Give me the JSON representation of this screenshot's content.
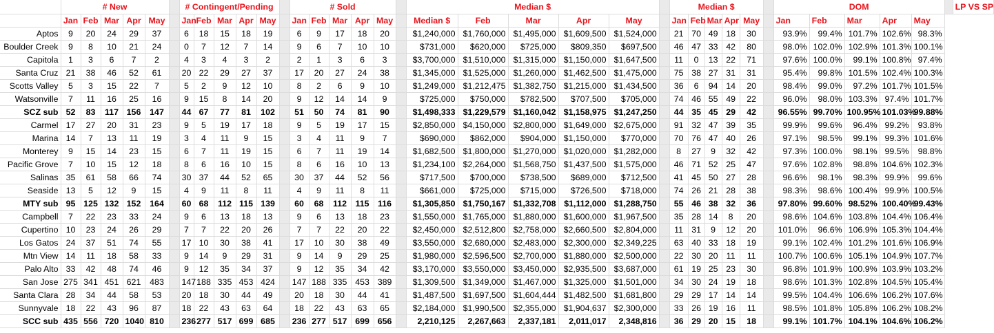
{
  "headers": {
    "groups": [
      "# New",
      "# Contingent/Pending",
      "# Sold",
      "Median $",
      "Median $",
      "DOM",
      "LP VS SP"
    ],
    "months": [
      "Jan",
      "Feb",
      "Mar",
      "Apr",
      "May"
    ],
    "median_month_labels": [
      "Median $",
      "Feb",
      "Mar",
      "Apr",
      "May"
    ]
  },
  "colors": {
    "header_red": "#e8141c",
    "gap_gray": "#eaeaea",
    "grid": "#dcdcdc"
  },
  "rows": [
    {
      "name": "Aptos",
      "sub": false,
      "new": [
        "9",
        "20",
        "24",
        "29",
        "37"
      ],
      "pending": [
        "6",
        "18",
        "15",
        "18",
        "19"
      ],
      "sold": [
        "6",
        "9",
        "17",
        "18",
        "20"
      ],
      "median": [
        "$1,240,000",
        "$1,760,000",
        "$1,495,000",
        "$1,609,500",
        "$1,524,000"
      ],
      "dom": [
        "21",
        "70",
        "49",
        "18",
        "30"
      ],
      "lpsp": [
        "93.9%",
        "99.4%",
        "101.7%",
        "102.6%",
        "98.3%"
      ]
    },
    {
      "name": "Boulder Creek",
      "sub": false,
      "new": [
        "9",
        "8",
        "10",
        "21",
        "24"
      ],
      "pending": [
        "0",
        "7",
        "12",
        "7",
        "14"
      ],
      "sold": [
        "9",
        "6",
        "7",
        "10",
        "10"
      ],
      "median": [
        "$731,000",
        "$620,000",
        "$725,000",
        "$809,350",
        "$697,500"
      ],
      "dom": [
        "46",
        "47",
        "33",
        "42",
        "80"
      ],
      "lpsp": [
        "98.0%",
        "102.0%",
        "102.9%",
        "101.3%",
        "100.1%"
      ]
    },
    {
      "name": "Capitola",
      "sub": false,
      "new": [
        "1",
        "3",
        "6",
        "7",
        "2"
      ],
      "pending": [
        "4",
        "3",
        "4",
        "3",
        "2"
      ],
      "sold": [
        "2",
        "1",
        "3",
        "6",
        "3"
      ],
      "median": [
        "$3,700,000",
        "$1,510,000",
        "$1,315,000",
        "$1,150,000",
        "$1,647,500"
      ],
      "dom": [
        "11",
        "0",
        "13",
        "22",
        "71"
      ],
      "lpsp": [
        "97.6%",
        "100.0%",
        "99.1%",
        "100.8%",
        "97.4%"
      ]
    },
    {
      "name": "Santa Cruz",
      "sub": false,
      "new": [
        "21",
        "38",
        "46",
        "52",
        "61"
      ],
      "pending": [
        "20",
        "22",
        "29",
        "27",
        "37"
      ],
      "sold": [
        "17",
        "20",
        "27",
        "24",
        "38"
      ],
      "median": [
        "$1,345,000",
        "$1,525,000",
        "$1,260,000",
        "$1,462,500",
        "$1,475,000"
      ],
      "dom": [
        "75",
        "38",
        "27",
        "31",
        "31"
      ],
      "lpsp": [
        "95.4%",
        "99.8%",
        "101.5%",
        "102.4%",
        "100.3%"
      ]
    },
    {
      "name": "Scotts Valley",
      "sub": false,
      "new": [
        "5",
        "3",
        "15",
        "22",
        "7"
      ],
      "pending": [
        "5",
        "2",
        "9",
        "12",
        "10"
      ],
      "sold": [
        "8",
        "2",
        "6",
        "9",
        "10"
      ],
      "median": [
        "$1,249,000",
        "$1,212,475",
        "$1,382,750",
        "$1,215,000",
        "$1,434,500"
      ],
      "dom": [
        "36",
        "6",
        "94",
        "14",
        "20"
      ],
      "lpsp": [
        "98.4%",
        "99.0%",
        "97.2%",
        "101.7%",
        "101.5%"
      ]
    },
    {
      "name": "Watsonville",
      "sub": false,
      "new": [
        "7",
        "11",
        "16",
        "25",
        "16"
      ],
      "pending": [
        "9",
        "15",
        "8",
        "14",
        "20"
      ],
      "sold": [
        "9",
        "12",
        "14",
        "14",
        "9"
      ],
      "median": [
        "$725,000",
        "$750,000",
        "$782,500",
        "$707,500",
        "$705,000"
      ],
      "dom": [
        "74",
        "46",
        "55",
        "49",
        "22"
      ],
      "lpsp": [
        "96.0%",
        "98.0%",
        "103.3%",
        "97.4%",
        "101.7%"
      ]
    },
    {
      "name": "SCZ sub",
      "sub": true,
      "new": [
        "52",
        "83",
        "117",
        "156",
        "147"
      ],
      "pending": [
        "44",
        "67",
        "77",
        "81",
        "102"
      ],
      "sold": [
        "51",
        "50",
        "74",
        "81",
        "90"
      ],
      "median": [
        "$1,498,333",
        "$1,229,579",
        "$1,160,042",
        "$1,158,975",
        "$1,247,250"
      ],
      "dom": [
        "44",
        "35",
        "45",
        "29",
        "42"
      ],
      "lpsp": [
        "96.55%",
        "99.70%",
        "100.95%",
        "101.03%",
        "99.88%"
      ]
    },
    {
      "name": "Carmel",
      "sub": false,
      "new": [
        "17",
        "27",
        "20",
        "31",
        "23"
      ],
      "pending": [
        "9",
        "5",
        "19",
        "17",
        "18"
      ],
      "sold": [
        "9",
        "5",
        "19",
        "17",
        "15"
      ],
      "median": [
        "$2,850,000",
        "$4,150,000",
        "$2,800,000",
        "$1,649,000",
        "$2,675,000"
      ],
      "dom": [
        "91",
        "32",
        "47",
        "39",
        "35"
      ],
      "lpsp": [
        "99.9%",
        "99.6%",
        "96.4%",
        "99.2%",
        "93.8%"
      ]
    },
    {
      "name": "Marina",
      "sub": false,
      "new": [
        "14",
        "7",
        "13",
        "11",
        "19"
      ],
      "pending": [
        "3",
        "4",
        "11",
        "9",
        "15"
      ],
      "sold": [
        "3",
        "4",
        "11",
        "9",
        "7"
      ],
      "median": [
        "$690,000",
        "$862,000",
        "$904,000",
        "$1,150,000",
        "$770,000"
      ],
      "dom": [
        "70",
        "76",
        "47",
        "40",
        "26"
      ],
      "lpsp": [
        "97.1%",
        "98.5%",
        "99.1%",
        "99.3%",
        "101.6%"
      ]
    },
    {
      "name": "Monterey",
      "sub": false,
      "new": [
        "9",
        "15",
        "14",
        "23",
        "15"
      ],
      "pending": [
        "6",
        "7",
        "11",
        "19",
        "15"
      ],
      "sold": [
        "6",
        "7",
        "11",
        "19",
        "14"
      ],
      "median": [
        "$1,682,500",
        "$1,800,000",
        "$1,270,000",
        "$1,020,000",
        "$1,282,000"
      ],
      "dom": [
        "8",
        "27",
        "9",
        "32",
        "42"
      ],
      "lpsp": [
        "97.3%",
        "100.0%",
        "98.1%",
        "99.5%",
        "98.8%"
      ]
    },
    {
      "name": "Pacific Grove",
      "sub": false,
      "new": [
        "7",
        "10",
        "15",
        "12",
        "18"
      ],
      "pending": [
        "8",
        "6",
        "16",
        "10",
        "15"
      ],
      "sold": [
        "8",
        "6",
        "16",
        "10",
        "13"
      ],
      "median": [
        "$1,234,100",
        "$2,264,000",
        "$1,568,750",
        "$1,437,500",
        "$1,575,000"
      ],
      "dom": [
        "46",
        "71",
        "52",
        "25",
        "47"
      ],
      "lpsp": [
        "97.6%",
        "102.8%",
        "98.8%",
        "104.6%",
        "102.3%"
      ]
    },
    {
      "name": "Salinas",
      "sub": false,
      "new": [
        "35",
        "61",
        "58",
        "66",
        "74"
      ],
      "pending": [
        "30",
        "37",
        "44",
        "52",
        "65"
      ],
      "sold": [
        "30",
        "37",
        "44",
        "52",
        "56"
      ],
      "median": [
        "$717,500",
        "$700,000",
        "$738,500",
        "$689,000",
        "$712,500"
      ],
      "dom": [
        "41",
        "45",
        "50",
        "27",
        "28"
      ],
      "lpsp": [
        "96.6%",
        "98.1%",
        "98.3%",
        "99.9%",
        "99.6%"
      ]
    },
    {
      "name": "Seaside",
      "sub": false,
      "new": [
        "13",
        "5",
        "12",
        "9",
        "15"
      ],
      "pending": [
        "4",
        "9",
        "11",
        "8",
        "11"
      ],
      "sold": [
        "4",
        "9",
        "11",
        "8",
        "11"
      ],
      "median": [
        "$661,000",
        "$725,000",
        "$715,000",
        "$726,500",
        "$718,000"
      ],
      "dom": [
        "74",
        "26",
        "21",
        "28",
        "38"
      ],
      "lpsp": [
        "98.3%",
        "98.6%",
        "100.4%",
        "99.9%",
        "100.5%"
      ]
    },
    {
      "name": "MTY sub",
      "sub": true,
      "new": [
        "95",
        "125",
        "132",
        "152",
        "164"
      ],
      "pending": [
        "60",
        "68",
        "112",
        "115",
        "139"
      ],
      "sold": [
        "60",
        "68",
        "112",
        "115",
        "116"
      ],
      "median": [
        "$1,305,850",
        "$1,750,167",
        "$1,332,708",
        "$1,112,000",
        "$1,288,750"
      ],
      "dom": [
        "55",
        "46",
        "38",
        "32",
        "36"
      ],
      "lpsp": [
        "97.80%",
        "99.60%",
        "98.52%",
        "100.40%",
        "99.43%"
      ]
    },
    {
      "name": "Campbell",
      "sub": false,
      "new": [
        "7",
        "22",
        "23",
        "33",
        "24"
      ],
      "pending": [
        "9",
        "6",
        "13",
        "18",
        "13"
      ],
      "sold": [
        "9",
        "6",
        "13",
        "18",
        "23"
      ],
      "median": [
        "$1,550,000",
        "$1,765,000",
        "$1,880,000",
        "$1,600,000",
        "$1,967,500"
      ],
      "dom": [
        "35",
        "28",
        "14",
        "8",
        "20"
      ],
      "lpsp": [
        "98.6%",
        "104.6%",
        "103.8%",
        "104.4%",
        "106.4%"
      ]
    },
    {
      "name": "Cupertino",
      "sub": false,
      "new": [
        "10",
        "23",
        "24",
        "26",
        "29"
      ],
      "pending": [
        "7",
        "7",
        "22",
        "20",
        "26"
      ],
      "sold": [
        "7",
        "7",
        "22",
        "20",
        "22"
      ],
      "median": [
        "$2,450,000",
        "$2,512,800",
        "$2,758,000",
        "$2,660,500",
        "$2,804,000"
      ],
      "dom": [
        "11",
        "31",
        "9",
        "12",
        "20"
      ],
      "lpsp": [
        "101.0%",
        "96.6%",
        "106.9%",
        "105.3%",
        "104.4%"
      ]
    },
    {
      "name": "Los Gatos",
      "sub": false,
      "new": [
        "24",
        "37",
        "51",
        "74",
        "55"
      ],
      "pending": [
        "17",
        "10",
        "30",
        "38",
        "41"
      ],
      "sold": [
        "17",
        "10",
        "30",
        "38",
        "49"
      ],
      "median": [
        "$3,550,000",
        "$2,680,000",
        "$2,483,000",
        "$2,300,000",
        "$2,349,225"
      ],
      "dom": [
        "63",
        "40",
        "33",
        "18",
        "19"
      ],
      "lpsp": [
        "99.1%",
        "102.4%",
        "101.2%",
        "101.6%",
        "106.9%"
      ]
    },
    {
      "name": "Mtn View",
      "sub": false,
      "new": [
        "14",
        "11",
        "18",
        "58",
        "33"
      ],
      "pending": [
        "9",
        "14",
        "9",
        "29",
        "31"
      ],
      "sold": [
        "9",
        "14",
        "9",
        "29",
        "25"
      ],
      "median": [
        "$1,980,000",
        "$2,596,500",
        "$2,700,000",
        "$1,880,000",
        "$2,500,000"
      ],
      "dom": [
        "22",
        "30",
        "20",
        "11",
        "11"
      ],
      "lpsp": [
        "100.7%",
        "100.6%",
        "105.1%",
        "104.9%",
        "107.7%"
      ]
    },
    {
      "name": "Palo Alto",
      "sub": false,
      "new": [
        "33",
        "42",
        "48",
        "74",
        "46"
      ],
      "pending": [
        "9",
        "12",
        "35",
        "34",
        "37"
      ],
      "sold": [
        "9",
        "12",
        "35",
        "34",
        "42"
      ],
      "median": [
        "$3,170,000",
        "$3,550,000",
        "$3,450,000",
        "$2,935,500",
        "$3,687,000"
      ],
      "dom": [
        "61",
        "19",
        "25",
        "23",
        "30"
      ],
      "lpsp": [
        "96.8%",
        "101.9%",
        "100.9%",
        "103.9%",
        "103.2%"
      ]
    },
    {
      "name": "San Jose",
      "sub": false,
      "new": [
        "275",
        "341",
        "451",
        "621",
        "483"
      ],
      "pending": [
        "147",
        "188",
        "335",
        "453",
        "424"
      ],
      "sold": [
        "147",
        "188",
        "335",
        "453",
        "389"
      ],
      "median": [
        "$1,309,500",
        "$1,349,000",
        "$1,467,000",
        "$1,325,000",
        "$1,501,000"
      ],
      "dom": [
        "34",
        "30",
        "24",
        "19",
        "18"
      ],
      "lpsp": [
        "98.6%",
        "101.3%",
        "102.8%",
        "104.5%",
        "105.4%"
      ]
    },
    {
      "name": "Santa Clara",
      "sub": false,
      "new": [
        "28",
        "34",
        "44",
        "58",
        "53"
      ],
      "pending": [
        "20",
        "18",
        "30",
        "44",
        "49"
      ],
      "sold": [
        "20",
        "18",
        "30",
        "44",
        "41"
      ],
      "median": [
        "$1,487,500",
        "$1,697,500",
        "$1,604,444",
        "$1,482,500",
        "$1,681,800"
      ],
      "dom": [
        "29",
        "29",
        "17",
        "14",
        "14"
      ],
      "lpsp": [
        "99.5%",
        "104.4%",
        "106.6%",
        "106.2%",
        "107.6%"
      ]
    },
    {
      "name": "Sunnyvale",
      "sub": false,
      "new": [
        "18",
        "22",
        "43",
        "96",
        "87"
      ],
      "pending": [
        "18",
        "22",
        "43",
        "63",
        "64"
      ],
      "sold": [
        "18",
        "22",
        "43",
        "63",
        "65"
      ],
      "median": [
        "$2,184,000",
        "$1,990,500",
        "$2,355,000",
        "$1,904,637",
        "$2,300,000"
      ],
      "dom": [
        "33",
        "26",
        "19",
        "16",
        "11"
      ],
      "lpsp": [
        "98.5%",
        "101.8%",
        "105.8%",
        "106.2%",
        "108.2%"
      ]
    },
    {
      "name": "SCC sub",
      "sub": true,
      "new": [
        "435",
        "556",
        "720",
        "1040",
        "810"
      ],
      "pending": [
        "236",
        "277",
        "517",
        "699",
        "685"
      ],
      "sold": [
        "236",
        "277",
        "517",
        "699",
        "656"
      ],
      "median": [
        "2,210,125",
        "2,267,663",
        "2,337,181",
        "2,011,017",
        "2,348,816"
      ],
      "dom": [
        "36",
        "29",
        "20",
        "15",
        "18"
      ],
      "lpsp": [
        "99.1%",
        "101.7%",
        "104.1%",
        "104.6%",
        "106.2%"
      ]
    }
  ]
}
